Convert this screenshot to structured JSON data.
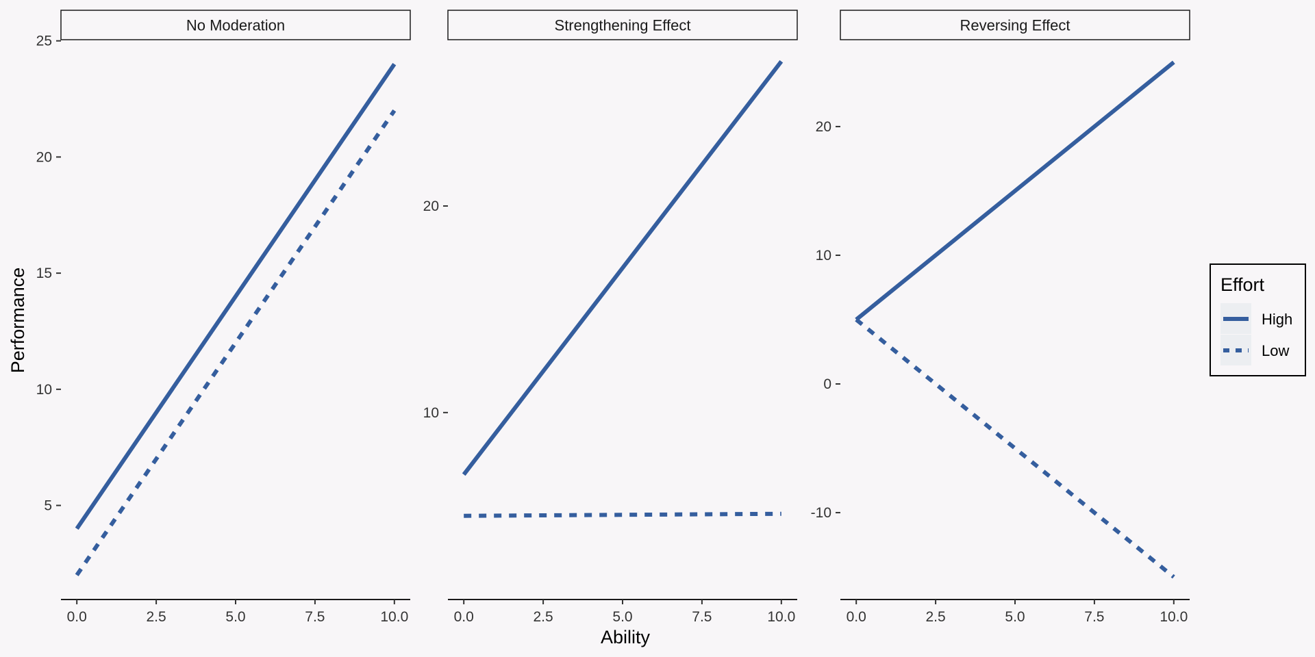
{
  "chart_data": {
    "type": "line",
    "xlabel": "Ability",
    "ylabel": "Performance",
    "legend": {
      "title": "Effort",
      "position": "right",
      "entries": [
        {
          "label": "High",
          "linetype": "solid"
        },
        {
          "label": "Low",
          "linetype": "dashed"
        }
      ]
    },
    "line_color": "#355e9e",
    "panels": [
      {
        "title": "No Moderation",
        "xlim": [
          -0.5,
          10.5
        ],
        "ylim": [
          0.95,
          25.05
        ],
        "x_ticks": [
          "0.0",
          "2.5",
          "5.0",
          "7.5",
          "10.0"
        ],
        "y_ticks": [
          5,
          10,
          15,
          20,
          25
        ],
        "series": [
          {
            "name": "High",
            "x": [
              0,
              10
            ],
            "y": [
              4,
              24
            ]
          },
          {
            "name": "Low",
            "x": [
              0,
              10
            ],
            "y": [
              2,
              22
            ]
          }
        ]
      },
      {
        "title": "Strengthening Effect",
        "xlim": [
          -0.5,
          10.5
        ],
        "ylim": [
          0.95,
          28.05
        ],
        "x_ticks": [
          "0.0",
          "2.5",
          "5.0",
          "7.5",
          "10.0"
        ],
        "y_ticks": [
          10,
          20
        ],
        "series": [
          {
            "name": "High",
            "x": [
              0,
              10
            ],
            "y": [
              7,
              27
            ]
          },
          {
            "name": "Low",
            "x": [
              0,
              10
            ],
            "y": [
              5,
              5.1
            ]
          }
        ]
      },
      {
        "title": "Reversing Effect",
        "xlim": [
          -0.5,
          10.5
        ],
        "ylim": [
          -16.75,
          26.75
        ],
        "x_ticks": [
          "0.0",
          "2.5",
          "5.0",
          "7.5",
          "10.0"
        ],
        "y_ticks": [
          -10,
          0,
          10,
          20
        ],
        "series": [
          {
            "name": "High",
            "x": [
              0,
              10
            ],
            "y": [
              5,
              25
            ]
          },
          {
            "name": "Low",
            "x": [
              0,
              10
            ],
            "y": [
              5,
              -15
            ]
          }
        ]
      }
    ]
  }
}
